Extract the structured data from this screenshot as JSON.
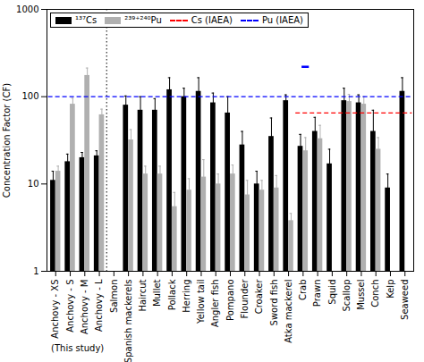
{
  "chart_data": {
    "type": "bar",
    "categories": [
      "Anchovy - XS",
      "Anchovy - S",
      "Anchovy - M",
      "Anchovy - L",
      "Salmon",
      "Spanish mackerels",
      "Haircut",
      "Mullet",
      "Pollack",
      "Herring",
      "Yellow tail",
      "Angler fish",
      "Pompano",
      "Flounder",
      "Croaker",
      "Sword fish",
      "Atka mackerel",
      "Crab",
      "Prawn",
      "Squid",
      "Scallop",
      "Mussel",
      "Conch",
      "Kelp",
      "Seaweed"
    ],
    "series": [
      {
        "name": "¹³⁷Cs",
        "color": "black",
        "values": [
          11,
          18,
          20,
          21,
          null,
          80,
          70,
          70,
          120,
          100,
          115,
          85,
          65,
          28,
          10,
          35,
          90,
          27,
          40,
          17,
          90,
          85,
          40,
          9,
          115
        ],
        "errors_upper": [
          3,
          4,
          3,
          3,
          null,
          22,
          30,
          25,
          45,
          25,
          50,
          25,
          35,
          12,
          4,
          22,
          15,
          10,
          18,
          8,
          35,
          20,
          30,
          4,
          50
        ],
        "errors_lower": [
          3,
          4,
          3,
          3,
          null,
          22,
          30,
          25,
          45,
          25,
          50,
          25,
          35,
          12,
          4,
          22,
          15,
          10,
          18,
          8,
          35,
          20,
          30,
          4,
          50
        ]
      },
      {
        "name": "²³⁹⁺²⁴⁰Pu",
        "color": "#b0b0b0",
        "values": [
          14,
          82,
          175,
          62,
          null,
          32,
          13,
          13,
          5.5,
          8.5,
          12,
          10,
          13,
          7.5,
          8.5,
          9,
          3.8,
          24,
          33,
          null,
          88,
          82,
          25,
          null,
          null
        ],
        "errors_upper": [
          2,
          14,
          38,
          10,
          null,
          10,
          3,
          3,
          2.5,
          3,
          7,
          3,
          3.5,
          3.5,
          2.5,
          3.5,
          0.8,
          10,
          14,
          null,
          18,
          18,
          9,
          null,
          null
        ],
        "errors_lower": [
          2,
          14,
          38,
          10,
          null,
          10,
          3,
          3,
          2.5,
          3,
          7,
          3,
          3.5,
          3.5,
          2.5,
          3.5,
          0.8,
          10,
          14,
          null,
          18,
          18,
          9,
          null,
          null
        ]
      }
    ],
    "reference_lines": [
      {
        "name": "Cs (IAEA)",
        "value": 65,
        "color": "red",
        "line_style": "dashed",
        "from": "Crab"
      },
      {
        "name": "Pu (IAEA)",
        "value": 100,
        "color": "blue",
        "line_style": "dashed",
        "from": "Anchovy - XS"
      }
    ],
    "single_marker": {
      "series": "²³⁹⁺²⁴⁰Pu",
      "category": "Crab",
      "value": 220,
      "color": "blue"
    },
    "separator": {
      "before": "Salmon",
      "line_style": "dotted"
    },
    "annotations": [
      {
        "text": "(This study)",
        "from": "Anchovy - XS",
        "to": "Anchovy - L"
      }
    ],
    "ylabel": "Concentration Factor (CF)",
    "log": "y",
    "ylim": [
      1,
      1000
    ],
    "yticks": [
      1,
      10,
      100,
      1000
    ],
    "grid": false,
    "legend": "upper left"
  }
}
